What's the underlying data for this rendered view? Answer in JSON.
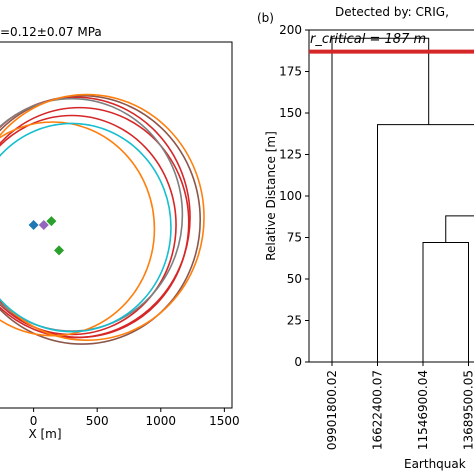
{
  "chart_data": [
    {
      "type": "scatter",
      "title": "=0.12±0.07 MPa",
      "xlabel": "X [m]",
      "x_ticks": [
        "0",
        "500",
        "1000",
        "1500"
      ],
      "xlim": [
        -280,
        1560
      ],
      "ylim": [
        -1500,
        1500
      ],
      "circles": [
        {
          "color": "#d62728",
          "cx": 330,
          "cy": 60,
          "r": 900
        },
        {
          "color": "#d62728",
          "cx": 360,
          "cy": 20,
          "r": 860
        },
        {
          "color": "#d62728",
          "cx": 300,
          "cy": 0,
          "r": 820
        },
        {
          "color": "#8c564b",
          "cx": 380,
          "cy": 40,
          "r": 930
        },
        {
          "color": "#7f7f7f",
          "cx": 300,
          "cy": 80,
          "r": 870
        },
        {
          "color": "#ff7f0e",
          "cx": 420,
          "cy": 60,
          "r": 920
        },
        {
          "color": "#ff7f0e",
          "cx": 150,
          "cy": -30,
          "r": 800
        },
        {
          "color": "#17becf",
          "cx": 300,
          "cy": -20,
          "r": 780
        }
      ],
      "points": [
        {
          "x": 0,
          "y": 0,
          "color": "#1f77b4"
        },
        {
          "x": 80,
          "y": 0,
          "color": "#9467bd"
        },
        {
          "x": 140,
          "y": 30,
          "color": "#2ca02c"
        },
        {
          "x": 200,
          "y": -200,
          "color": "#2ca02c"
        }
      ]
    },
    {
      "type": "dendrogram",
      "panel_label": "(b)",
      "title": "Detected by: CRIG,",
      "ylabel": "Relative Distance [m]",
      "xlabel": "Earthquak",
      "ylim": [
        0,
        200
      ],
      "y_ticks": [
        0,
        25,
        50,
        75,
        100,
        125,
        150,
        175,
        200
      ],
      "leaves": [
        "09901800.02",
        "16622400.07",
        "11546900.04",
        "13689500.05"
      ],
      "critical_distance": 187,
      "critical_label": "r_critical = 187 m",
      "merges": [
        {
          "left": 2,
          "right": 3,
          "height": 72
        },
        {
          "left": 2.5,
          "right": 4,
          "height": 88
        },
        {
          "left": 1,
          "right": 3.25,
          "height": 143
        },
        {
          "left": 0,
          "right": 2.125,
          "height": 195
        }
      ],
      "colors": {
        "critical_line": "#d62728"
      }
    }
  ]
}
